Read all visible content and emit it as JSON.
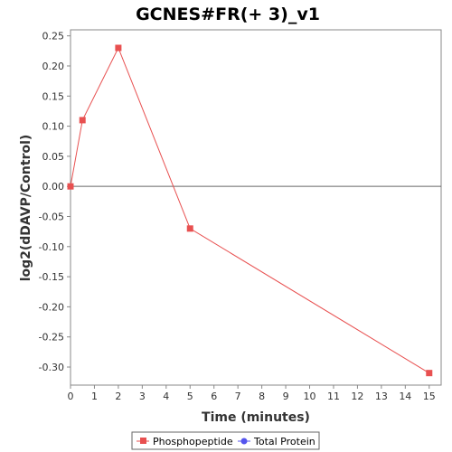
{
  "chart_data": {
    "type": "line",
    "title": "GCNES#FR(+ 3)_v1",
    "xlabel": "Time (minutes)",
    "ylabel": "log2(dDAVP/Control)",
    "xlim": [
      0,
      15.5
    ],
    "ylim": [
      -0.33,
      0.26
    ],
    "x_ticks": [
      0,
      1,
      2,
      3,
      4,
      5,
      6,
      7,
      8,
      9,
      10,
      11,
      12,
      13,
      14,
      15
    ],
    "y_ticks": [
      0.25,
      0.2,
      0.15,
      0.1,
      0.05,
      0.0,
      -0.05,
      -0.1,
      -0.15,
      -0.2,
      -0.25,
      -0.3
    ],
    "y_tick_labels": [
      "0.25",
      "0.20",
      "0.15",
      "0.10",
      "0.05",
      "0.00",
      "-0.05",
      "-0.10",
      "-0.15",
      "-0.20",
      "-0.25",
      "-0.30"
    ],
    "zero_line": true,
    "grid": false,
    "legend_position": "bottom",
    "series": [
      {
        "name": "Phosphopeptide",
        "color": "#e85050",
        "marker": "square",
        "x": [
          0,
          0.5,
          2,
          5,
          15
        ],
        "y": [
          0.0,
          0.11,
          0.23,
          -0.07,
          -0.31
        ]
      },
      {
        "name": "Total Protein",
        "color": "#5555ee",
        "marker": "circle",
        "x": [],
        "y": []
      }
    ]
  }
}
